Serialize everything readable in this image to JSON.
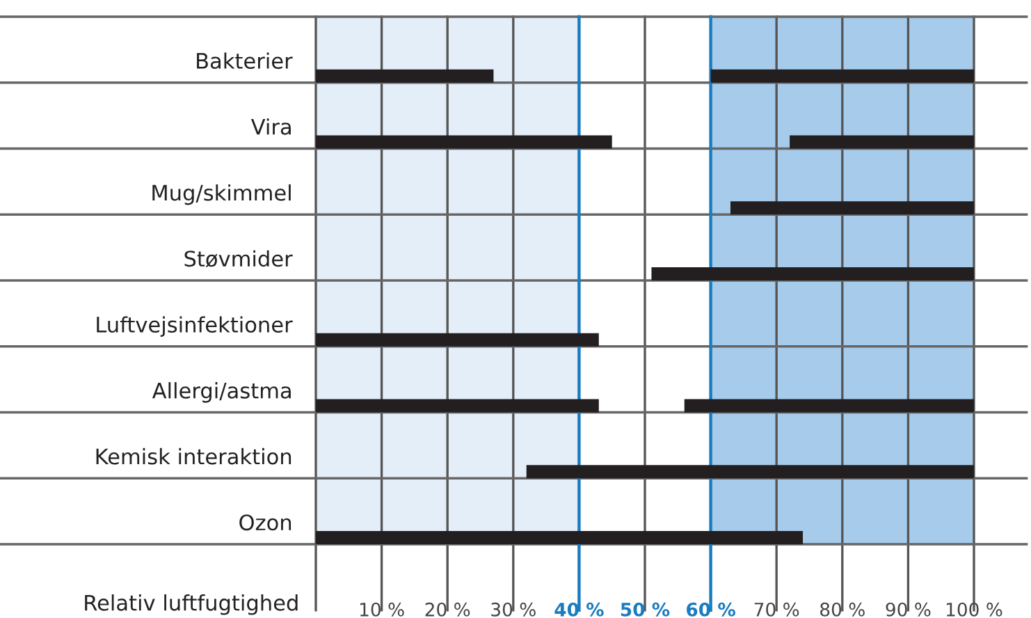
{
  "chart_data": {
    "type": "bar",
    "orientation": "horizontal",
    "xlabel": "Relativ luftfugtighed",
    "categories": [
      "Bakterier",
      "Vira",
      "Mug/skimmel",
      "Støvmider",
      "Luftvejsinfektioner",
      "Allergi/astma",
      "Kemisk interaktion",
      "Ozon"
    ],
    "series": [
      {
        "color": "#231f20",
        "base": [
          0,
          0,
          null,
          null,
          0,
          0,
          null,
          0
        ],
        "values": [
          27,
          45,
          null,
          null,
          43,
          43,
          null,
          74
        ]
      },
      {
        "color": "#231f20",
        "base": [
          60,
          72,
          63,
          51,
          null,
          56,
          32,
          null
        ],
        "values": [
          40,
          28,
          37,
          49,
          null,
          44,
          68,
          null
        ]
      }
    ],
    "xlim": [
      0,
      100
    ],
    "xticks": [
      {
        "value": 0,
        "label": null
      },
      {
        "value": 10,
        "label": "10 %"
      },
      {
        "value": 20,
        "label": "20 %"
      },
      {
        "value": 30,
        "label": "30 %"
      },
      {
        "value": 40,
        "label": "40 %"
      },
      {
        "value": 50,
        "label": "50 %"
      },
      {
        "value": 60,
        "label": "60 %"
      },
      {
        "value": 70,
        "label": "70 %"
      },
      {
        "value": 80,
        "label": "80 %"
      },
      {
        "value": 90,
        "label": "90 %"
      },
      {
        "value": 100,
        "label": "100 %"
      }
    ],
    "grid": "x",
    "legend": false,
    "bands": [
      {
        "axis": "x",
        "from": 0,
        "to": 40,
        "color": "#e4eef8"
      },
      {
        "axis": "x",
        "from": 60,
        "to": 100,
        "color": "#a6cbeb"
      }
    ]
  }
}
